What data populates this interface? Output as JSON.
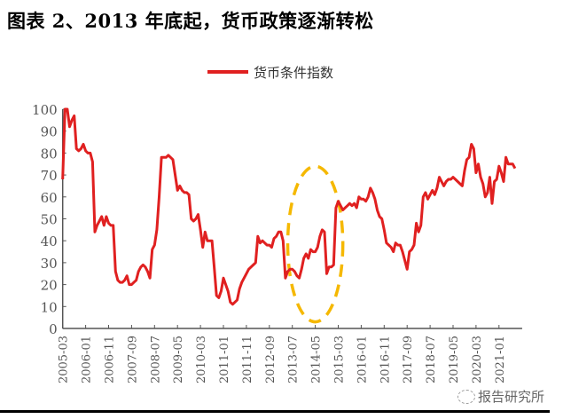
{
  "title": "图表 2、2013 年底起，货币政策逐渐转松",
  "watermark": {
    "text": "报告研究所",
    "icon": "wechat-icon"
  },
  "chart_data": {
    "type": "line",
    "title": "",
    "xlabel": "",
    "ylabel": "",
    "ylim": [
      0,
      100
    ],
    "y_ticks": [
      "0",
      "10",
      "20",
      "30",
      "40",
      "50",
      "60",
      "70",
      "80",
      "90",
      "100"
    ],
    "x_ticks": [
      "2005-03",
      "2006-01",
      "2006-11",
      "2007-09",
      "2008-07",
      "2009-05",
      "2010-03",
      "2011-01",
      "2011-11",
      "2012-09",
      "2013-07",
      "2014-05",
      "2015-03",
      "2016-01",
      "2016-11",
      "2017-09",
      "2018-07",
      "2019-05",
      "2020-03",
      "2021-01"
    ],
    "grid": false,
    "legend": "top-center",
    "annotation": {
      "shape": "dashed-ellipse",
      "color": "#F5B800",
      "x_range": [
        "2013-05",
        "2015-05"
      ],
      "y_range": [
        3,
        74
      ]
    },
    "series": [
      {
        "name": "货币条件指数",
        "color": "#E02020",
        "points": [
          [
            "2005-03",
            68
          ],
          [
            "2005-04",
            100
          ],
          [
            "2005-05",
            100
          ],
          [
            "2005-06",
            92
          ],
          [
            "2005-07",
            95
          ],
          [
            "2005-08",
            97
          ],
          [
            "2005-09",
            82
          ],
          [
            "2005-10",
            81
          ],
          [
            "2005-11",
            82
          ],
          [
            "2005-12",
            84
          ],
          [
            "2006-01",
            81
          ],
          [
            "2006-02",
            80
          ],
          [
            "2006-03",
            80
          ],
          [
            "2006-04",
            76
          ],
          [
            "2006-05",
            44
          ],
          [
            "2006-06",
            47
          ],
          [
            "2006-07",
            49
          ],
          [
            "2006-08",
            51
          ],
          [
            "2006-09",
            47
          ],
          [
            "2006-10",
            51
          ],
          [
            "2006-11",
            48
          ],
          [
            "2006-12",
            47
          ],
          [
            "2007-01",
            47
          ],
          [
            "2007-02",
            26
          ],
          [
            "2007-03",
            22
          ],
          [
            "2007-04",
            21
          ],
          [
            "2007-05",
            21
          ],
          [
            "2007-06",
            22
          ],
          [
            "2007-07",
            24
          ],
          [
            "2007-08",
            20
          ],
          [
            "2007-09",
            20
          ],
          [
            "2007-10",
            21
          ],
          [
            "2007-11",
            22
          ],
          [
            "2007-12",
            26
          ],
          [
            "2008-01",
            28
          ],
          [
            "2008-02",
            29
          ],
          [
            "2008-03",
            28
          ],
          [
            "2008-04",
            26
          ],
          [
            "2008-05",
            23
          ],
          [
            "2008-06",
            36
          ],
          [
            "2008-07",
            38
          ],
          [
            "2008-08",
            45
          ],
          [
            "2008-09",
            60
          ],
          [
            "2008-10",
            78
          ],
          [
            "2008-11",
            78
          ],
          [
            "2008-12",
            78
          ],
          [
            "2009-01",
            79
          ],
          [
            "2009-02",
            78
          ],
          [
            "2009-03",
            77
          ],
          [
            "2009-04",
            70
          ],
          [
            "2009-05",
            63
          ],
          [
            "2009-06",
            65
          ],
          [
            "2009-07",
            63
          ],
          [
            "2009-08",
            62
          ],
          [
            "2009-09",
            62
          ],
          [
            "2009-10",
            61
          ],
          [
            "2009-11",
            50
          ],
          [
            "2009-12",
            49
          ],
          [
            "2010-01",
            50
          ],
          [
            "2010-02",
            52
          ],
          [
            "2010-03",
            45
          ],
          [
            "2010-04",
            37
          ],
          [
            "2010-05",
            44
          ],
          [
            "2010-06",
            40
          ],
          [
            "2010-07",
            40
          ],
          [
            "2010-08",
            40
          ],
          [
            "2010-09",
            28
          ],
          [
            "2010-10",
            15
          ],
          [
            "2010-11",
            14
          ],
          [
            "2010-12",
            17
          ],
          [
            "2011-01",
            23
          ],
          [
            "2011-02",
            20
          ],
          [
            "2011-03",
            17
          ],
          [
            "2011-04",
            12
          ],
          [
            "2011-05",
            11
          ],
          [
            "2011-06",
            12
          ],
          [
            "2011-07",
            13
          ],
          [
            "2011-08",
            18
          ],
          [
            "2011-09",
            21
          ],
          [
            "2011-10",
            23
          ],
          [
            "2011-11",
            25
          ],
          [
            "2011-12",
            27
          ],
          [
            "2012-01",
            28
          ],
          [
            "2012-02",
            29
          ],
          [
            "2012-03",
            30
          ],
          [
            "2012-04",
            42
          ],
          [
            "2012-05",
            39
          ],
          [
            "2012-06",
            40
          ],
          [
            "2012-07",
            39
          ],
          [
            "2012-08",
            38
          ],
          [
            "2012-09",
            38
          ],
          [
            "2012-10",
            37
          ],
          [
            "2012-11",
            41
          ],
          [
            "2012-12",
            42
          ],
          [
            "2013-01",
            44
          ],
          [
            "2013-02",
            44
          ],
          [
            "2013-03",
            40
          ],
          [
            "2013-04",
            23
          ],
          [
            "2013-05",
            26
          ],
          [
            "2013-06",
            27
          ],
          [
            "2013-07",
            27
          ],
          [
            "2013-08",
            26
          ],
          [
            "2013-09",
            24
          ],
          [
            "2013-10",
            23
          ],
          [
            "2013-11",
            27
          ],
          [
            "2013-12",
            32
          ],
          [
            "2014-01",
            34
          ],
          [
            "2014-02",
            32
          ],
          [
            "2014-03",
            36
          ],
          [
            "2014-04",
            35
          ],
          [
            "2014-05",
            35
          ],
          [
            "2014-06",
            37
          ],
          [
            "2014-07",
            42
          ],
          [
            "2014-08",
            45
          ],
          [
            "2014-09",
            44
          ],
          [
            "2014-10",
            25
          ],
          [
            "2014-11",
            28
          ],
          [
            "2014-12",
            28
          ],
          [
            "2015-01",
            29
          ],
          [
            "2015-02",
            55
          ],
          [
            "2015-03",
            58
          ],
          [
            "2015-04",
            56
          ],
          [
            "2015-05",
            54
          ],
          [
            "2015-06",
            55
          ],
          [
            "2015-07",
            56
          ],
          [
            "2015-08",
            57
          ],
          [
            "2015-09",
            56
          ],
          [
            "2015-10",
            57
          ],
          [
            "2015-11",
            55
          ],
          [
            "2015-12",
            60
          ],
          [
            "2016-01",
            59
          ],
          [
            "2016-02",
            59
          ],
          [
            "2016-03",
            58
          ],
          [
            "2016-04",
            60
          ],
          [
            "2016-05",
            64
          ],
          [
            "2016-06",
            62
          ],
          [
            "2016-07",
            59
          ],
          [
            "2016-08",
            54
          ],
          [
            "2016-09",
            51
          ],
          [
            "2016-10",
            50
          ],
          [
            "2016-11",
            45
          ],
          [
            "2016-12",
            39
          ],
          [
            "2017-01",
            38
          ],
          [
            "2017-02",
            37
          ],
          [
            "2017-03",
            35
          ],
          [
            "2017-04",
            39
          ],
          [
            "2017-05",
            38
          ],
          [
            "2017-06",
            38
          ],
          [
            "2017-07",
            35
          ],
          [
            "2017-08",
            31
          ],
          [
            "2017-09",
            27
          ],
          [
            "2017-10",
            35
          ],
          [
            "2017-11",
            36
          ],
          [
            "2017-12",
            38
          ],
          [
            "2018-01",
            48
          ],
          [
            "2018-02",
            44
          ],
          [
            "2018-03",
            47
          ],
          [
            "2018-04",
            60
          ],
          [
            "2018-05",
            62
          ],
          [
            "2018-06",
            59
          ],
          [
            "2018-07",
            61
          ],
          [
            "2018-08",
            63
          ],
          [
            "2018-09",
            61
          ],
          [
            "2018-10",
            64
          ],
          [
            "2018-11",
            69
          ],
          [
            "2018-12",
            67
          ],
          [
            "2019-01",
            65
          ],
          [
            "2019-02",
            67
          ],
          [
            "2019-03",
            68
          ],
          [
            "2019-04",
            68
          ],
          [
            "2019-05",
            69
          ],
          [
            "2019-06",
            68
          ],
          [
            "2019-07",
            67
          ],
          [
            "2019-08",
            66
          ],
          [
            "2019-09",
            65
          ],
          [
            "2019-10",
            72
          ],
          [
            "2019-11",
            77
          ],
          [
            "2019-12",
            78
          ],
          [
            "2020-01",
            84
          ],
          [
            "2020-02",
            82
          ],
          [
            "2020-03",
            71
          ],
          [
            "2020-04",
            75
          ],
          [
            "2020-05",
            69
          ],
          [
            "2020-06",
            66
          ],
          [
            "2020-07",
            60
          ],
          [
            "2020-08",
            62
          ],
          [
            "2020-09",
            69
          ],
          [
            "2020-10",
            57
          ],
          [
            "2020-11",
            67
          ],
          [
            "2020-12",
            68
          ],
          [
            "2021-01",
            74
          ],
          [
            "2021-02",
            71
          ],
          [
            "2021-03",
            67
          ],
          [
            "2021-04",
            78
          ],
          [
            "2021-05",
            75
          ],
          [
            "2021-06",
            75
          ],
          [
            "2021-07",
            75
          ],
          [
            "2021-08",
            73
          ]
        ]
      }
    ]
  }
}
